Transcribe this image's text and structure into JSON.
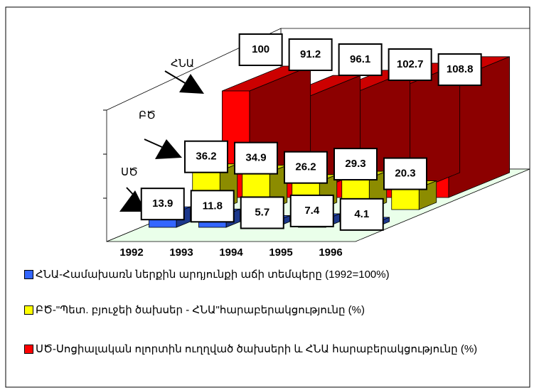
{
  "chart_data": {
    "type": "bar3d",
    "categories": [
      "1992",
      "1993",
      "1994",
      "1995",
      "1996"
    ],
    "series": [
      {
        "name": "ՀՆԱ-Համախառն ներքին արդյունքի աճի տեմպերը (1992=100%)",
        "color": "#3366ff",
        "values": [
          13.9,
          11.8,
          5.7,
          7.4,
          4.1
        ]
      },
      {
        "name": "ԲԾ-\"Պետ. բյուջեի ծախսեր - ՀՆԱ\"հարաբերակցությունը (%)",
        "color": "#ffff00",
        "values": [
          36.2,
          34.9,
          26.2,
          29.3,
          20.3
        ]
      },
      {
        "name": "ՍԾ-Սոցիալական ոլորտին ուղղված ծախսերի և ՀՆԱ հարաբերակցությունը (%)",
        "color": "#ff0000",
        "values": [
          100,
          91.2,
          96.1,
          102.7,
          108.8
        ]
      }
    ],
    "annotations": [
      "ՀՆԱ",
      "ԲԾ",
      "ՍԾ"
    ],
    "ylim": [
      0,
      120
    ]
  }
}
